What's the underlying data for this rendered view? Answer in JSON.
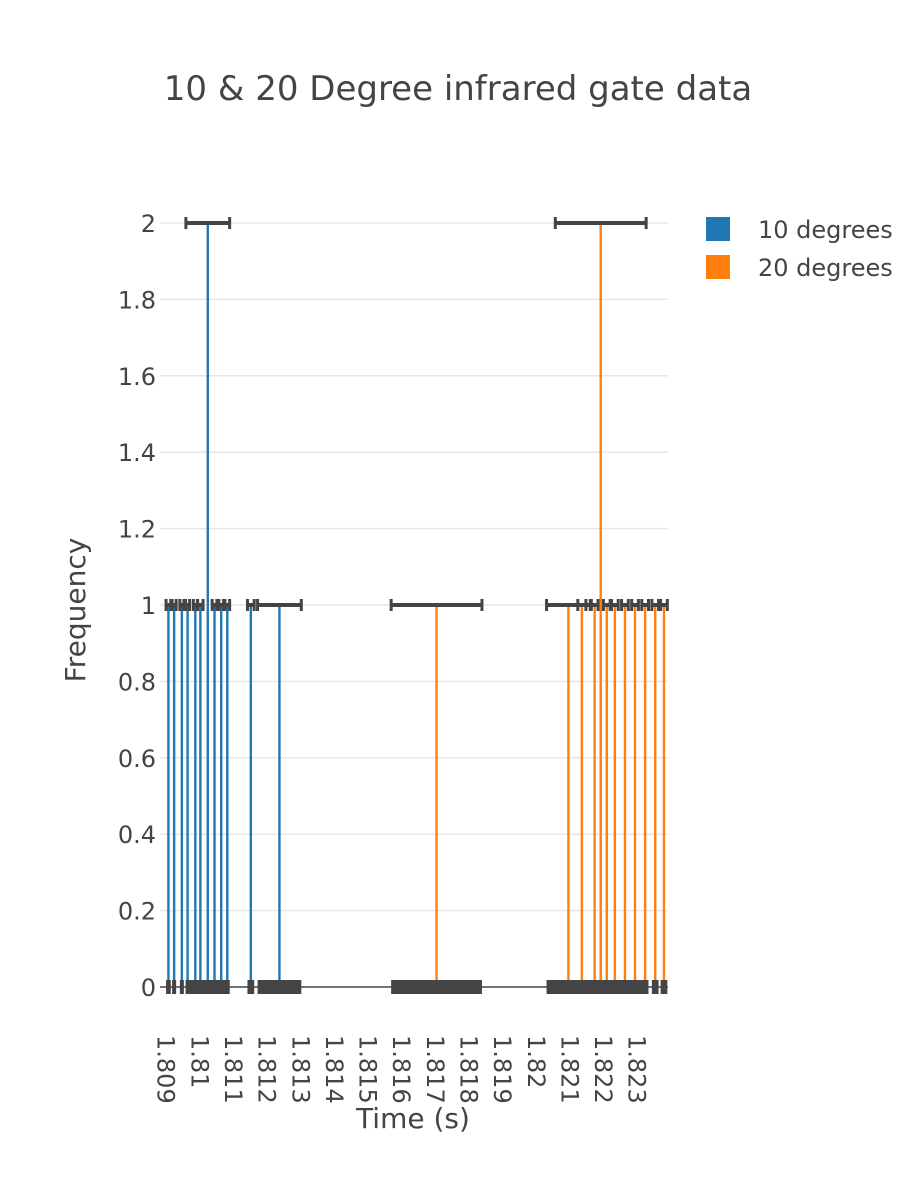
{
  "chart_data": {
    "type": "bar",
    "title": "10 & 20 Degree infrared gate data",
    "xlabel": "Time (s)",
    "ylabel": "Frequency",
    "xlim": [
      1.8088,
      1.8239
    ],
    "ylim": [
      0,
      2
    ],
    "xticks": [
      "1.809",
      "1.81",
      "1.811",
      "1.812",
      "1.813",
      "1.814",
      "1.815",
      "1.816",
      "1.817",
      "1.818",
      "1.819",
      "1.82",
      "1.821",
      "1.822",
      "1.823"
    ],
    "xtick_values": [
      1.809,
      1.81,
      1.811,
      1.812,
      1.813,
      1.814,
      1.815,
      1.816,
      1.817,
      1.818,
      1.819,
      1.82,
      1.821,
      1.822,
      1.823
    ],
    "yticks": [
      "0",
      "0.2",
      "0.4",
      "0.6",
      "0.8",
      "1",
      "1.2",
      "1.4",
      "1.6",
      "1.8",
      "2"
    ],
    "ytick_values": [
      0,
      0.2,
      0.4,
      0.6,
      0.8,
      1,
      1.2,
      1.4,
      1.6,
      1.8,
      2
    ],
    "grid": true,
    "legend_position": "top-right",
    "series": [
      {
        "name": "10 degrees",
        "color": "#1f77b4",
        "x": [
          1.80905,
          1.80922,
          1.80945,
          1.80962,
          1.80985,
          1.81,
          1.81022,
          1.81042,
          1.81062,
          1.8108,
          1.8115,
          1.81235
        ],
        "y": [
          1,
          1,
          1,
          1,
          1,
          1,
          2,
          1,
          1,
          1,
          1,
          1
        ],
        "error_x": [
          7e-05,
          6e-05,
          6e-05,
          6e-05,
          6e-05,
          8e-05,
          0.00065,
          7e-05,
          7e-05,
          7e-05,
          0.0001,
          0.00065
        ]
      },
      {
        "name": "20 degrees",
        "color": "#ff7f0e",
        "x": [
          1.81702,
          1.82094,
          1.82134,
          1.82172,
          1.8219,
          1.82208,
          1.82232,
          1.82262,
          1.82292,
          1.82322,
          1.82352,
          1.82378
        ],
        "y": [
          1,
          1,
          1,
          1,
          2,
          1,
          1,
          1,
          1,
          1,
          1,
          1
        ],
        "error_x": [
          0.00135,
          0.00065,
          0.00012,
          0.0001,
          0.00135,
          0.0001,
          0.0001,
          0.0001,
          0.0001,
          0.0001,
          0.0001,
          0.0001
        ]
      }
    ]
  }
}
